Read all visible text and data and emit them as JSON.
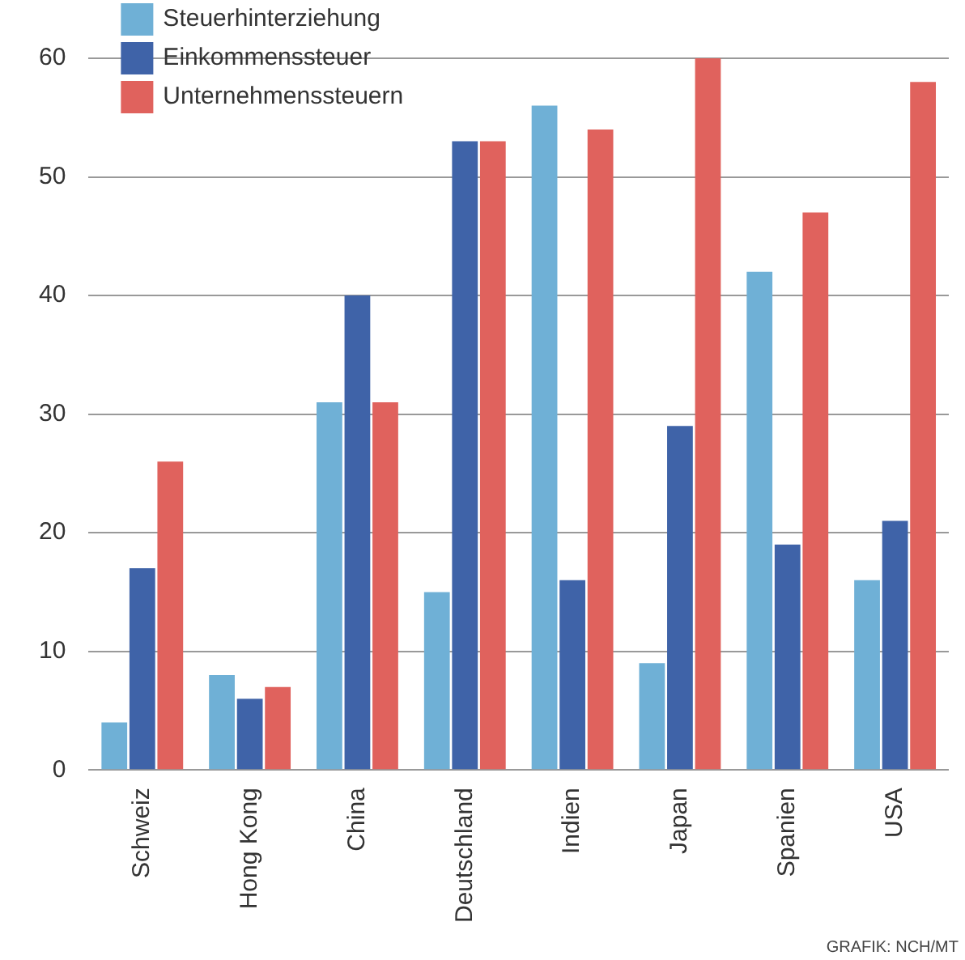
{
  "chart_data": {
    "type": "bar",
    "categories": [
      "Schweiz",
      "Hong Kong",
      "China",
      "Deutschland",
      "Indien",
      "Japan",
      "Spanien",
      "USA"
    ],
    "series": [
      {
        "name": "Steuerhinterziehung",
        "color": "#6fb0d6",
        "values": [
          4,
          8,
          31,
          15,
          56,
          9,
          42,
          16
        ]
      },
      {
        "name": "Einkommenssteuer",
        "color": "#3f63a8",
        "values": [
          17,
          6,
          40,
          53,
          16,
          29,
          19,
          21
        ]
      },
      {
        "name": "Unternehmenssteuern",
        "color": "#e0625d",
        "values": [
          26,
          7,
          31,
          53,
          54,
          60,
          47,
          58
        ]
      }
    ],
    "ylim": [
      0,
      60
    ],
    "yticks": [
      0,
      10,
      20,
      30,
      40,
      50,
      60
    ],
    "grid": "y",
    "legend": "top left",
    "annotations": [
      "GRAFIK: NCH/MT"
    ]
  }
}
